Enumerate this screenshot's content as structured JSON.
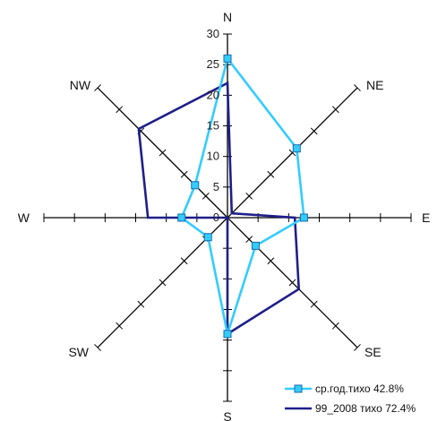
{
  "chart_data": {
    "type": "radar",
    "directions": [
      "N",
      "NE",
      "E",
      "SE",
      "S",
      "SW",
      "W",
      "NW"
    ],
    "direction_labels": {
      "N": "N",
      "NE": "NE",
      "E": "E",
      "SE": "SE",
      "S": "S",
      "SW": "SW",
      "W": "W",
      "NW": "NW"
    },
    "rlim": [
      0,
      30
    ],
    "radial_ticks": [
      "0",
      "5",
      "10",
      "15",
      "20",
      "25",
      "30"
    ],
    "series": [
      {
        "name": "ср.год.тихо 42.8%",
        "color": "#33ccff",
        "marker": "square",
        "values": [
          26,
          16,
          12.5,
          6.5,
          19,
          4.5,
          7.5,
          7.5
        ]
      },
      {
        "name": "99_2008 тихо 72.4%",
        "color": "#1f1f8a",
        "marker": "none",
        "values": [
          22,
          1,
          11,
          16.5,
          19,
          0,
          13,
          20.5
        ]
      }
    ],
    "legend_position": "bottom-right"
  }
}
